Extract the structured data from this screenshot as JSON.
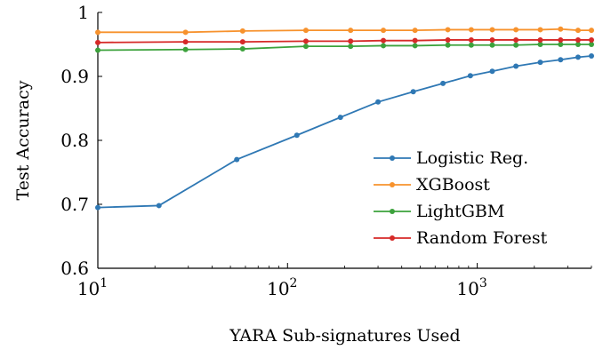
{
  "chart_data": {
    "type": "line",
    "xlabel": "YARA Sub-signatures Used",
    "ylabel": "Test Accuracy",
    "xscale": "log",
    "xlim": [
      10,
      4000
    ],
    "ylim": [
      0.6,
      1.0
    ],
    "xticks": [
      {
        "value": 10,
        "base": "10",
        "exp": "1"
      },
      {
        "value": 100,
        "base": "10",
        "exp": "2"
      },
      {
        "value": 1000,
        "base": "10",
        "exp": "3"
      }
    ],
    "yticks": [
      {
        "value": 0.6,
        "label": "0.6"
      },
      {
        "value": 0.7,
        "label": "0.7"
      },
      {
        "value": 0.8,
        "label": "0.8"
      },
      {
        "value": 0.9,
        "label": "0.9"
      },
      {
        "value": 1.0,
        "label": "1"
      }
    ],
    "grid": false,
    "legend_position": "lower-right",
    "series": [
      {
        "name": "Logistic Reg.",
        "color": "#2f78b4",
        "points": [
          [
            10,
            0.695
          ],
          [
            21,
            0.698
          ],
          [
            54,
            0.77
          ],
          [
            112,
            0.808
          ],
          [
            190,
            0.836
          ],
          [
            300,
            0.86
          ],
          [
            460,
            0.876
          ],
          [
            660,
            0.889
          ],
          [
            920,
            0.901
          ],
          [
            1200,
            0.908
          ],
          [
            1600,
            0.916
          ],
          [
            2150,
            0.922
          ],
          [
            2750,
            0.926
          ],
          [
            3400,
            0.93
          ],
          [
            4000,
            0.932
          ]
        ]
      },
      {
        "name": "XGBoost",
        "color": "#f7922d",
        "points": [
          [
            10,
            0.969
          ],
          [
            29,
            0.969
          ],
          [
            58,
            0.971
          ],
          [
            125,
            0.972
          ],
          [
            215,
            0.972
          ],
          [
            320,
            0.972
          ],
          [
            470,
            0.972
          ],
          [
            700,
            0.973
          ],
          [
            930,
            0.973
          ],
          [
            1200,
            0.973
          ],
          [
            1600,
            0.973
          ],
          [
            2150,
            0.973
          ],
          [
            2750,
            0.974
          ],
          [
            3400,
            0.972
          ],
          [
            4000,
            0.972
          ]
        ]
      },
      {
        "name": "LightGBM",
        "color": "#3ca23c",
        "points": [
          [
            10,
            0.941
          ],
          [
            29,
            0.942
          ],
          [
            58,
            0.943
          ],
          [
            125,
            0.947
          ],
          [
            215,
            0.947
          ],
          [
            320,
            0.948
          ],
          [
            470,
            0.948
          ],
          [
            700,
            0.949
          ],
          [
            930,
            0.949
          ],
          [
            1200,
            0.949
          ],
          [
            1600,
            0.949
          ],
          [
            2150,
            0.95
          ],
          [
            2750,
            0.95
          ],
          [
            3400,
            0.95
          ],
          [
            4000,
            0.95
          ]
        ]
      },
      {
        "name": "Random Forest",
        "color": "#d62a28",
        "points": [
          [
            10,
            0.953
          ],
          [
            29,
            0.954
          ],
          [
            58,
            0.954
          ],
          [
            125,
            0.955
          ],
          [
            215,
            0.955
          ],
          [
            320,
            0.956
          ],
          [
            470,
            0.956
          ],
          [
            700,
            0.957
          ],
          [
            930,
            0.957
          ],
          [
            1200,
            0.957
          ],
          [
            1600,
            0.957
          ],
          [
            2150,
            0.957
          ],
          [
            2750,
            0.957
          ],
          [
            3400,
            0.957
          ],
          [
            4000,
            0.957
          ]
        ]
      }
    ]
  }
}
